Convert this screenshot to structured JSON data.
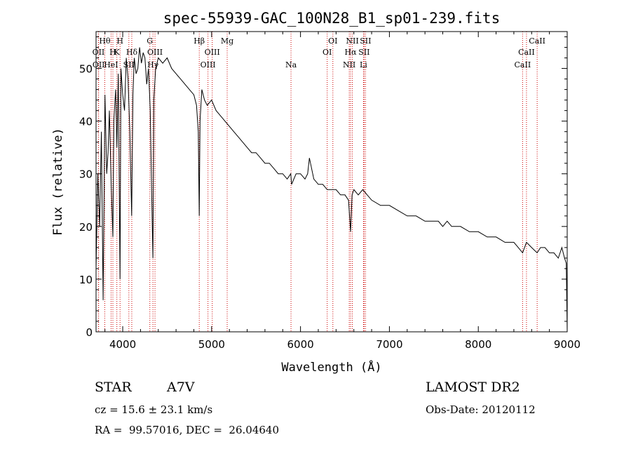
{
  "chart_data": {
    "type": "line",
    "title": "spec-55939-GAC_100N28_B1_sp01-239.fits",
    "xlabel": "Wavelength (Å)",
    "ylabel": "Flux (relative)",
    "xlim": [
      3700,
      9000
    ],
    "ylim": [
      0,
      57
    ],
    "x_ticks": [
      4000,
      5000,
      6000,
      7000,
      8000,
      9000
    ],
    "y_ticks": [
      0,
      10,
      20,
      30,
      40,
      50
    ],
    "x_tick_labels": [
      "4000",
      "5000",
      "6000",
      "7000",
      "8000",
      "9000"
    ],
    "y_tick_labels": [
      "0",
      "10",
      "20",
      "30",
      "40",
      "50"
    ],
    "grid": false,
    "line_color": "#000000",
    "marker_color": "#cc0000",
    "series": [
      {
        "x": [
          3700,
          3720,
          3740,
          3760,
          3780,
          3800,
          3820,
          3835,
          3850,
          3870,
          3889,
          3900,
          3920,
          3935,
          3950,
          3970,
          3980,
          4000,
          4020,
          4040,
          4060,
          4080,
          4101,
          4115,
          4130,
          4150,
          4170,
          4190,
          4210,
          4230,
          4250,
          4270,
          4290,
          4310,
          4330,
          4340,
          4350,
          4370,
          4400,
          4450,
          4500,
          4550,
          4600,
          4650,
          4700,
          4750,
          4800,
          4830,
          4850,
          4861,
          4870,
          4890,
          4920,
          4950,
          5000,
          5050,
          5100,
          5150,
          5200,
          5250,
          5300,
          5350,
          5400,
          5450,
          5500,
          5550,
          5600,
          5650,
          5700,
          5750,
          5800,
          5850,
          5890,
          5900,
          5950,
          6000,
          6050,
          6080,
          6100,
          6150,
          6200,
          6250,
          6300,
          6350,
          6400,
          6450,
          6500,
          6540,
          6563,
          6580,
          6600,
          6650,
          6700,
          6750,
          6800,
          6900,
          7000,
          7100,
          7200,
          7300,
          7400,
          7500,
          7550,
          7600,
          7650,
          7700,
          7800,
          7900,
          8000,
          8100,
          8200,
          8300,
          8400,
          8450,
          8498,
          8542,
          8600,
          8662,
          8700,
          8750,
          8800,
          8850,
          8900,
          8940,
          8970,
          8990,
          9000
        ],
        "y": [
          12,
          30,
          20,
          38,
          6,
          45,
          30,
          34,
          42,
          28,
          18,
          40,
          46,
          35,
          49,
          10,
          50,
          45,
          42,
          52,
          48,
          38,
          22,
          45,
          52,
          49,
          50,
          54,
          51,
          53,
          52,
          47,
          50,
          42,
          22,
          14,
          44,
          50,
          52,
          51,
          52,
          50,
          49,
          48,
          47,
          46,
          45,
          43,
          38,
          22,
          40,
          46,
          44,
          43,
          44,
          42,
          41,
          40,
          39,
          38,
          37,
          36,
          35,
          34,
          34,
          33,
          32,
          32,
          31,
          30,
          30,
          29,
          30,
          28,
          30,
          30,
          29,
          30,
          33,
          29,
          28,
          28,
          27,
          27,
          27,
          26,
          26,
          25,
          19,
          26,
          27,
          26,
          27,
          26,
          25,
          24,
          24,
          23,
          22,
          22,
          21,
          21,
          21,
          20,
          21,
          20,
          20,
          19,
          19,
          18,
          18,
          17,
          17,
          16,
          15,
          17,
          16,
          15,
          16,
          16,
          15,
          15,
          14,
          16,
          14,
          13,
          0
        ]
      }
    ],
    "line_markers": [
      {
        "wl": 3727,
        "label": "OII",
        "row": 2
      },
      {
        "wl": 3729,
        "label": "OII",
        "row": 3
      },
      {
        "wl": 3798,
        "label": "Hθ",
        "row": 1
      },
      {
        "wl": 3869,
        "label": "HeI",
        "row": 3
      },
      {
        "wl": 3889,
        "label": "H",
        "row": 2
      },
      {
        "wl": 3934,
        "label": "K",
        "row": 2
      },
      {
        "wl": 3970,
        "label": "H",
        "row": 1
      },
      {
        "wl": 4069,
        "label": "SII",
        "row": 3
      },
      {
        "wl": 4102,
        "label": "Hδ",
        "row": 2
      },
      {
        "wl": 4305,
        "label": "G",
        "row": 1
      },
      {
        "wl": 4340,
        "label": "Hγ",
        "row": 3
      },
      {
        "wl": 4363,
        "label": "OIII",
        "row": 2
      },
      {
        "wl": 4861,
        "label": "Hβ",
        "row": 1
      },
      {
        "wl": 4959,
        "label": "OIII",
        "row": 3
      },
      {
        "wl": 5007,
        "label": "OIII",
        "row": 2
      },
      {
        "wl": 5175,
        "label": "Mg",
        "row": 1
      },
      {
        "wl": 5893,
        "label": "Na",
        "row": 3
      },
      {
        "wl": 6300,
        "label": "OI",
        "row": 2
      },
      {
        "wl": 6364,
        "label": "OI",
        "row": 1
      },
      {
        "wl": 6548,
        "label": "NII",
        "row": 3
      },
      {
        "wl": 6563,
        "label": "Hα",
        "row": 2
      },
      {
        "wl": 6583,
        "label": "NII",
        "row": 1
      },
      {
        "wl": 6708,
        "label": "Li",
        "row": 3
      },
      {
        "wl": 6716,
        "label": "SII",
        "row": 2
      },
      {
        "wl": 6731,
        "label": "SII",
        "row": 1
      },
      {
        "wl": 8498,
        "label": "CaII",
        "row": 3
      },
      {
        "wl": 8542,
        "label": "CaII",
        "row": 2
      },
      {
        "wl": 8662,
        "label": "CaII",
        "row": 1
      }
    ]
  },
  "info": {
    "class_label": "STAR",
    "subclass": "A7V",
    "survey": "LAMOST DR2",
    "redshift": "cz = 15.6 ± 23.1 km/s",
    "obs_date": "Obs-Date: 20120112",
    "coords": "RA =  99.57016, DEC =  26.04640"
  }
}
